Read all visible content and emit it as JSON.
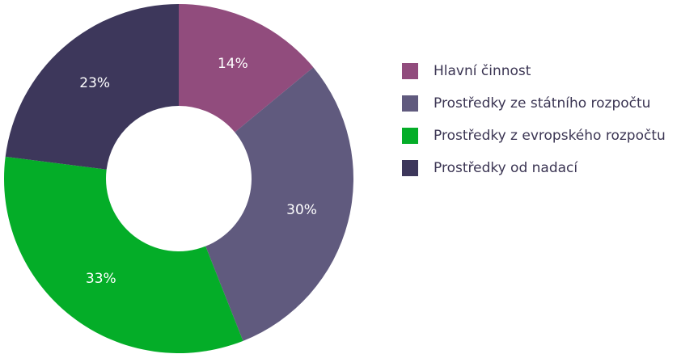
{
  "chart_data": {
    "type": "pie",
    "donut": true,
    "legend_position": "right",
    "series": [
      {
        "name": "Hlavní činnost",
        "value": 14,
        "label": "14%",
        "color": "#914c7d"
      },
      {
        "name": "Prostředky ze státního rozpočtu",
        "value": 30,
        "label": "30%",
        "color": "#605a7e"
      },
      {
        "name": "Prostředky z evropského rozpočtu",
        "value": 33,
        "label": "33%",
        "color": "#04ad28"
      },
      {
        "name": "Prostředky od nadací",
        "value": 23,
        "label": "23%",
        "color": "#3d375b"
      }
    ]
  }
}
